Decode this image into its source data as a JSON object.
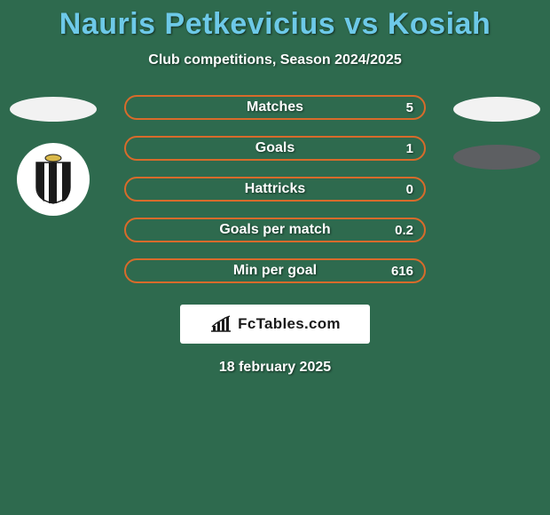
{
  "colors": {
    "background": "#2e6a4e",
    "title": "#6dc9e8",
    "subtitle": "#ffffff",
    "bar_fill": "#2e6a4e",
    "bar_border": "#d86b2b",
    "oval_left": "#f2f2f2",
    "oval_right1": "#f2f2f2",
    "oval_right2": "#5d5f62",
    "attr_bg": "#ffffff",
    "attr_text": "#1a1a1a",
    "date": "#ffffff"
  },
  "title": "Nauris Petkevicius vs Kosiah",
  "subtitle": "Club competitions, Season 2024/2025",
  "stats": [
    {
      "label": "Matches",
      "value": "5"
    },
    {
      "label": "Goals",
      "value": "1"
    },
    {
      "label": "Hattricks",
      "value": "0"
    },
    {
      "label": "Goals per match",
      "value": "0.2"
    },
    {
      "label": "Min per goal",
      "value": "616"
    }
  ],
  "attribution": "FcTables.com",
  "date": "18 february 2025"
}
